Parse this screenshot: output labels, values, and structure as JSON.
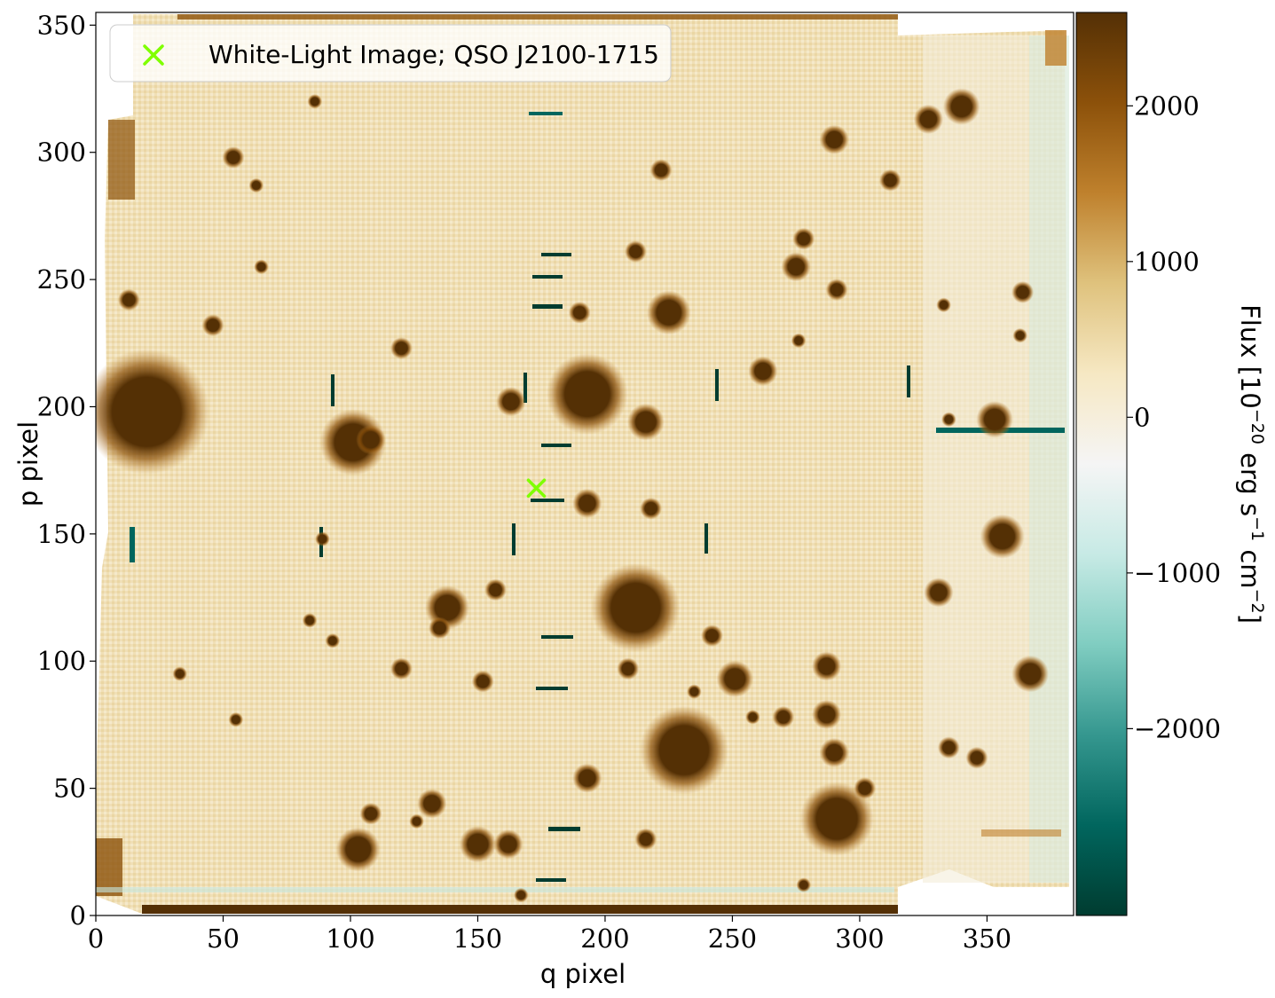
{
  "chart_data": {
    "type": "heatmap",
    "xlabel": "q pixel",
    "ylabel": "p pixel",
    "xlim": [
      0,
      384
    ],
    "ylim": [
      0,
      355
    ],
    "x_ticks": [
      0,
      50,
      100,
      150,
      200,
      250,
      300,
      350
    ],
    "y_ticks": [
      0,
      50,
      100,
      150,
      200,
      250,
      300,
      350
    ],
    "colorbar": {
      "label_main": "Flux [10",
      "label_exp1": "−20",
      "label_mid": " erg s",
      "label_exp2": "−1",
      "label_mid2": " cm",
      "label_exp3": "−2",
      "label_end": "]",
      "range": [
        -3200,
        2600
      ],
      "ticks": [
        {
          "value": 2000,
          "label": "2000"
        },
        {
          "value": 1000,
          "label": "1000"
        },
        {
          "value": 0,
          "label": "0"
        },
        {
          "value": -1000,
          "label": "−1000"
        },
        {
          "value": -2000,
          "label": "−2000"
        }
      ],
      "colors": [
        "#003c30",
        "#01665e",
        "#35978f",
        "#80cdc1",
        "#c7eae5",
        "#f5f5f5",
        "#f6e8c3",
        "#dfc27d",
        "#bf812d",
        "#8c510a",
        "#543005"
      ]
    },
    "legend": {
      "label": "White-Light Image; QSO J2100-1715",
      "position": "upper-left",
      "marker": "x",
      "marker_color": "#7fff00"
    },
    "qso_marker": {
      "x": 173,
      "y": 168
    },
    "sources": [
      {
        "x": 20,
        "y": 198,
        "r": 17
      },
      {
        "x": 101,
        "y": 186,
        "r": 9
      },
      {
        "x": 108,
        "y": 187,
        "r": 4
      },
      {
        "x": 193,
        "y": 205,
        "r": 11
      },
      {
        "x": 212,
        "y": 121,
        "r": 12
      },
      {
        "x": 231,
        "y": 65,
        "r": 12
      },
      {
        "x": 291,
        "y": 38,
        "r": 10
      },
      {
        "x": 138,
        "y": 121,
        "r": 6
      },
      {
        "x": 225,
        "y": 237,
        "r": 6
      },
      {
        "x": 103,
        "y": 26,
        "r": 6
      },
      {
        "x": 340,
        "y": 318,
        "r": 5
      },
      {
        "x": 356,
        "y": 149,
        "r": 6
      },
      {
        "x": 367,
        "y": 95,
        "r": 5
      },
      {
        "x": 353,
        "y": 195,
        "r": 5
      },
      {
        "x": 251,
        "y": 93,
        "r": 5
      },
      {
        "x": 150,
        "y": 28,
        "r": 5
      },
      {
        "x": 132,
        "y": 44,
        "r": 4
      },
      {
        "x": 162,
        "y": 28,
        "r": 4
      },
      {
        "x": 216,
        "y": 194,
        "r": 5
      },
      {
        "x": 163,
        "y": 202,
        "r": 4
      },
      {
        "x": 193,
        "y": 162,
        "r": 4
      },
      {
        "x": 290,
        "y": 305,
        "r": 4
      },
      {
        "x": 275,
        "y": 255,
        "r": 4
      },
      {
        "x": 262,
        "y": 214,
        "r": 4
      },
      {
        "x": 287,
        "y": 79,
        "r": 4
      },
      {
        "x": 290,
        "y": 64,
        "r": 4
      },
      {
        "x": 287,
        "y": 98,
        "r": 4
      },
      {
        "x": 331,
        "y": 127,
        "r": 4
      },
      {
        "x": 327,
        "y": 313,
        "r": 4
      },
      {
        "x": 135,
        "y": 113,
        "r": 3
      },
      {
        "x": 157,
        "y": 128,
        "r": 3
      },
      {
        "x": 120,
        "y": 223,
        "r": 3
      },
      {
        "x": 193,
        "y": 54,
        "r": 4
      },
      {
        "x": 54,
        "y": 298,
        "r": 3
      },
      {
        "x": 46,
        "y": 232,
        "r": 3
      },
      {
        "x": 13,
        "y": 242,
        "r": 3
      },
      {
        "x": 120,
        "y": 97,
        "r": 3
      },
      {
        "x": 152,
        "y": 92,
        "r": 3
      },
      {
        "x": 209,
        "y": 97,
        "r": 3
      },
      {
        "x": 270,
        "y": 78,
        "r": 3
      },
      {
        "x": 302,
        "y": 50,
        "r": 3
      },
      {
        "x": 335,
        "y": 66,
        "r": 3
      },
      {
        "x": 346,
        "y": 62,
        "r": 3
      },
      {
        "x": 364,
        "y": 245,
        "r": 3
      },
      {
        "x": 312,
        "y": 289,
        "r": 3
      },
      {
        "x": 216,
        "y": 30,
        "r": 3
      },
      {
        "x": 108,
        "y": 40,
        "r": 3
      },
      {
        "x": 190,
        "y": 237,
        "r": 3
      },
      {
        "x": 242,
        "y": 110,
        "r": 3
      },
      {
        "x": 218,
        "y": 160,
        "r": 3
      },
      {
        "x": 212,
        "y": 261,
        "r": 3
      },
      {
        "x": 291,
        "y": 246,
        "r": 3
      },
      {
        "x": 278,
        "y": 266,
        "r": 3
      },
      {
        "x": 222,
        "y": 293,
        "r": 3
      },
      {
        "x": 63,
        "y": 287,
        "r": 2
      },
      {
        "x": 84,
        "y": 116,
        "r": 2
      },
      {
        "x": 93,
        "y": 108,
        "r": 2
      },
      {
        "x": 55,
        "y": 77,
        "r": 2
      },
      {
        "x": 33,
        "y": 95,
        "r": 2
      },
      {
        "x": 86,
        "y": 320,
        "r": 2
      },
      {
        "x": 65,
        "y": 255,
        "r": 2
      },
      {
        "x": 126,
        "y": 37,
        "r": 2
      },
      {
        "x": 276,
        "y": 226,
        "r": 2
      },
      {
        "x": 333,
        "y": 240,
        "r": 2
      },
      {
        "x": 335,
        "y": 195,
        "r": 2
      },
      {
        "x": 235,
        "y": 88,
        "r": 2
      },
      {
        "x": 278,
        "y": 12,
        "r": 2
      },
      {
        "x": 167,
        "y": 8,
        "r": 2
      },
      {
        "x": 363,
        "y": 228,
        "r": 2
      },
      {
        "x": 89,
        "y": 148,
        "r": 2
      },
      {
        "x": 258,
        "y": 78,
        "r": 2
      }
    ]
  }
}
